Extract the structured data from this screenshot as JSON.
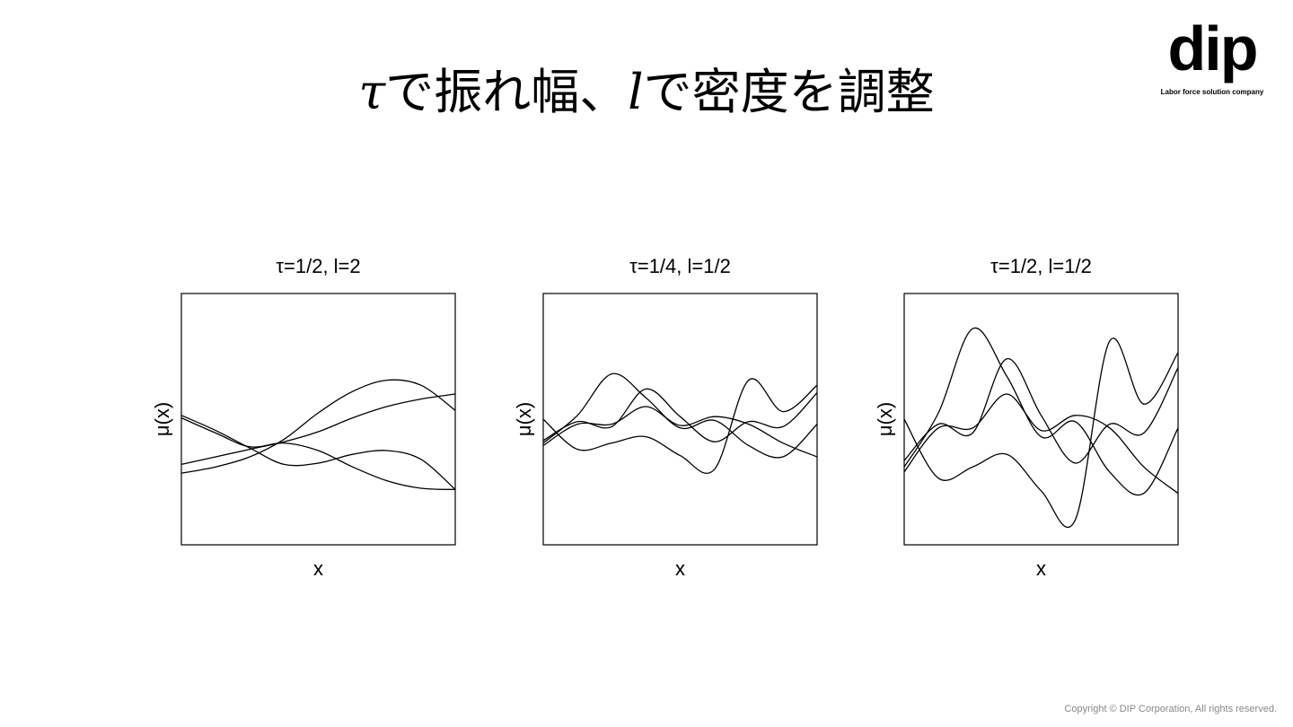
{
  "slide": {
    "title_parts": [
      "τ",
      "で振れ幅、",
      "l",
      "で密度を調整"
    ],
    "logo_text": "dip",
    "logo_tagline": "Labor force solution company",
    "copyright": "Copyright © DIP Corporation, All rights reserved."
  },
  "chart_data": [
    {
      "type": "line",
      "title": "τ=1/2, l=2",
      "xlabel": "x",
      "ylabel": "μ(x)",
      "ylim": [
        -1,
        1
      ],
      "x": [
        0,
        1,
        2,
        3,
        4,
        5,
        6,
        7,
        8
      ],
      "line_color": "#000000",
      "series": [
        {
          "values": [
            -0.43,
            -0.38,
            -0.3,
            -0.16,
            0.05,
            0.22,
            0.31,
            0.27,
            0.07
          ]
        },
        {
          "values": [
            -0.36,
            -0.3,
            -0.24,
            -0.18,
            -0.1,
            0.01,
            0.1,
            0.16,
            0.2
          ]
        },
        {
          "values": [
            0.03,
            -0.09,
            -0.23,
            -0.36,
            -0.35,
            -0.28,
            -0.25,
            -0.32,
            -0.56
          ]
        },
        {
          "values": [
            0.01,
            -0.11,
            -0.22,
            -0.19,
            -0.25,
            -0.38,
            -0.49,
            -0.55,
            -0.56
          ]
        }
      ]
    },
    {
      "type": "line",
      "title": "τ=1/4, l=1/2",
      "xlabel": "x",
      "ylabel": "μ(x)",
      "ylim": [
        -1,
        1
      ],
      "x": [
        0,
        1,
        2,
        3,
        4,
        5,
        6,
        7,
        8
      ],
      "line_color": "#000000",
      "series": [
        {
          "values": [
            -0.19,
            0.03,
            0.36,
            0.17,
            -0.07,
            -0.01,
            -0.21,
            -0.3,
            -0.04
          ]
        },
        {
          "values": [
            0.0,
            -0.24,
            -0.19,
            -0.14,
            -0.29,
            -0.4,
            0.31,
            0.06,
            0.27
          ]
        },
        {
          "values": [
            -0.17,
            -0.02,
            -0.06,
            0.24,
            0.02,
            -0.18,
            -0.02,
            -0.06,
            0.21
          ]
        },
        {
          "values": [
            -0.21,
            -0.04,
            -0.04,
            0.1,
            -0.05,
            0.02,
            -0.04,
            -0.19,
            -0.3
          ]
        }
      ]
    },
    {
      "type": "line",
      "title": "τ=1/2, l=1/2",
      "xlabel": "x",
      "ylabel": "μ(x)",
      "ylim": [
        -1,
        1
      ],
      "x": [
        0,
        1,
        2,
        3,
        4,
        5,
        6,
        7,
        8
      ],
      "line_color": "#000000",
      "series": [
        {
          "values": [
            -0.38,
            0.05,
            0.72,
            0.34,
            -0.14,
            -0.02,
            -0.42,
            -0.59,
            -0.07
          ]
        },
        {
          "values": [
            0.0,
            -0.47,
            -0.38,
            -0.28,
            -0.57,
            -0.8,
            0.62,
            0.12,
            0.53
          ]
        },
        {
          "values": [
            -0.33,
            -0.04,
            -0.11,
            0.48,
            0.03,
            -0.35,
            -0.04,
            -0.11,
            0.41
          ]
        },
        {
          "values": [
            -0.42,
            -0.07,
            -0.07,
            0.2,
            -0.09,
            0.03,
            -0.07,
            -0.38,
            -0.59
          ]
        }
      ]
    }
  ]
}
